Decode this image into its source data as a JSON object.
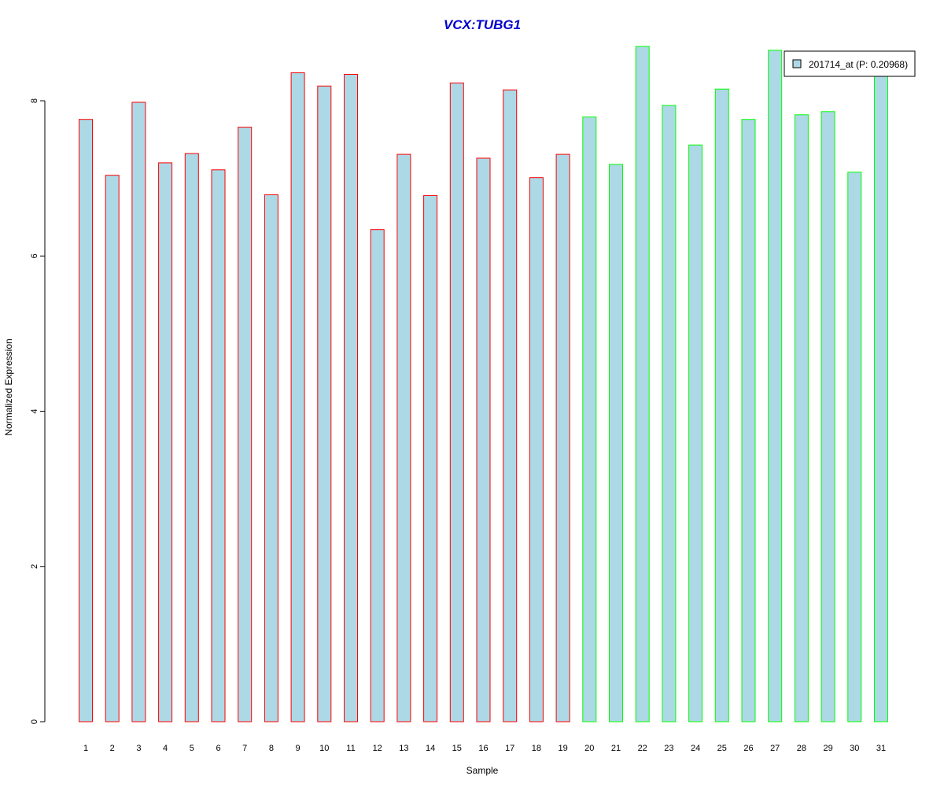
{
  "chart_data": {
    "type": "bar",
    "title": "VCX:TUBG1",
    "xlabel": "Sample",
    "ylabel": "Normalized Expression",
    "ylim": [
      0,
      8.7
    ],
    "yticks": [
      0,
      2,
      4,
      6,
      8
    ],
    "grid": false,
    "legend": {
      "placement": "top-right",
      "entries": [
        "201714_at (P: 0.20968)"
      ]
    },
    "categories": [
      "1",
      "2",
      "3",
      "4",
      "5",
      "6",
      "7",
      "8",
      "9",
      "10",
      "11",
      "12",
      "13",
      "14",
      "15",
      "16",
      "17",
      "18",
      "19",
      "20",
      "21",
      "22",
      "23",
      "24",
      "25",
      "26",
      "27",
      "28",
      "29",
      "30",
      "31"
    ],
    "series": [
      {
        "name": "201714_at (P: 0.20968)",
        "values": [
          7.76,
          7.04,
          7.98,
          7.2,
          7.32,
          7.11,
          7.66,
          6.79,
          8.36,
          8.19,
          8.34,
          6.34,
          7.31,
          6.78,
          8.23,
          7.26,
          8.14,
          7.01,
          7.31,
          7.79,
          7.18,
          8.7,
          7.94,
          7.43,
          8.15,
          7.76,
          8.65,
          7.82,
          7.86,
          7.08,
          8.42
        ],
        "groups": [
          "red",
          "red",
          "red",
          "red",
          "red",
          "red",
          "red",
          "red",
          "red",
          "red",
          "red",
          "red",
          "red",
          "red",
          "red",
          "red",
          "red",
          "red",
          "red",
          "green",
          "green",
          "green",
          "green",
          "green",
          "green",
          "green",
          "green",
          "green",
          "green",
          "green",
          "green"
        ]
      }
    ],
    "colors": {
      "bar_fill": "#add8e6",
      "group_red": "#ff0000",
      "group_green": "#00ff00",
      "title": "#0000cd"
    }
  }
}
